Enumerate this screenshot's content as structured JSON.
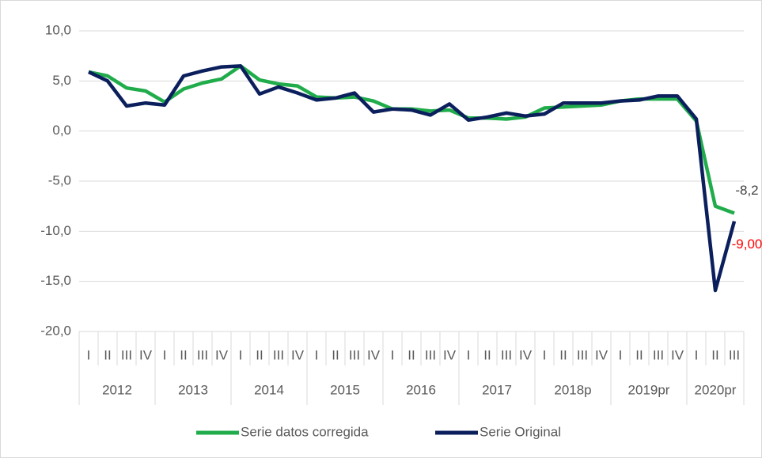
{
  "chart_data": {
    "type": "line",
    "groups": [
      {
        "name": "2012",
        "categories": [
          "I",
          "II",
          "III",
          "IV"
        ]
      },
      {
        "name": "2013",
        "categories": [
          "I",
          "II",
          "III",
          "IV"
        ]
      },
      {
        "name": "2014",
        "categories": [
          "I",
          "II",
          "III",
          "IV"
        ]
      },
      {
        "name": "2015",
        "categories": [
          "I",
          "II",
          "III",
          "IV"
        ]
      },
      {
        "name": "2016",
        "categories": [
          "I",
          "II",
          "III",
          "IV"
        ]
      },
      {
        "name": "2017",
        "categories": [
          "I",
          "II",
          "III",
          "IV"
        ]
      },
      {
        "name": "2018p",
        "categories": [
          "I",
          "II",
          "III",
          "IV"
        ]
      },
      {
        "name": "2019pr",
        "categories": [
          "I",
          "II",
          "III",
          "IV"
        ]
      },
      {
        "name": "2020pr",
        "categories": [
          "I",
          "II",
          "III"
        ]
      }
    ],
    "series": [
      {
        "name": "Serie datos corregida",
        "color": "#21ac4b",
        "label_color": "#404040",
        "values": [
          5.9,
          5.5,
          4.3,
          4.0,
          2.9,
          4.2,
          4.8,
          5.2,
          6.5,
          5.1,
          4.7,
          4.5,
          3.4,
          3.3,
          3.4,
          3.0,
          2.2,
          2.2,
          2.0,
          2.1,
          1.3,
          1.3,
          1.2,
          1.4,
          2.3,
          2.4,
          2.5,
          2.6,
          3.0,
          3.2,
          3.2,
          3.2,
          1.0,
          -7.5,
          -8.2
        ],
        "value_labels": [
          null,
          null,
          null,
          null,
          null,
          null,
          null,
          null,
          null,
          null,
          null,
          null,
          null,
          null,
          null,
          null,
          null,
          null,
          null,
          null,
          null,
          null,
          null,
          null,
          null,
          null,
          null,
          null,
          null,
          null,
          null,
          null,
          null,
          null,
          "-8,2"
        ]
      },
      {
        "name": "Serie Original",
        "color": "#0b1f5c",
        "label_color": "#ff0000",
        "values": [
          5.9,
          5.0,
          2.5,
          2.8,
          2.6,
          5.5,
          6.0,
          6.4,
          6.5,
          3.7,
          4.4,
          3.8,
          3.1,
          3.3,
          3.8,
          1.9,
          2.2,
          2.1,
          1.6,
          2.7,
          1.1,
          1.4,
          1.8,
          1.5,
          1.7,
          2.8,
          2.8,
          2.8,
          3.0,
          3.1,
          3.5,
          3.5,
          1.2,
          -15.9,
          -9.0
        ],
        "value_labels": [
          null,
          null,
          null,
          null,
          null,
          null,
          null,
          null,
          null,
          null,
          null,
          null,
          null,
          null,
          null,
          null,
          null,
          null,
          null,
          null,
          null,
          null,
          null,
          null,
          null,
          null,
          null,
          null,
          null,
          null,
          null,
          null,
          null,
          null,
          "-9,00"
        ]
      }
    ],
    "ylim": [
      -20,
      10
    ],
    "yticks": [
      {
        "value": -20,
        "label": "-20,0"
      },
      {
        "value": -15,
        "label": "-15,0"
      },
      {
        "value": -10,
        "label": "-10,0"
      },
      {
        "value": -5,
        "label": "-5,0"
      },
      {
        "value": 0,
        "label": "0,0"
      },
      {
        "value": 5,
        "label": "5,0"
      },
      {
        "value": 10,
        "label": "10,0"
      }
    ],
    "grid": true,
    "legend": "bottom"
  }
}
